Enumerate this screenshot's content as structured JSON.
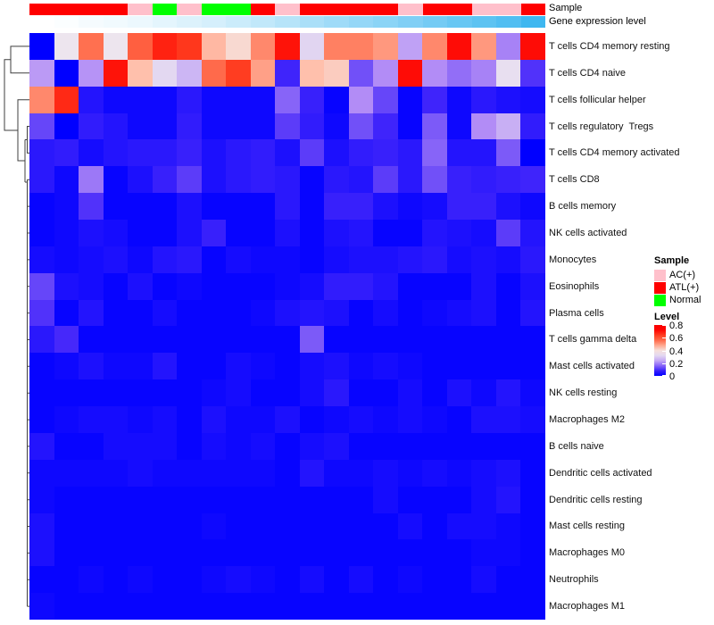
{
  "annotations": {
    "sample_label": "Sample",
    "gene_label": "Gene expression level",
    "sample_colors": {
      "AC(+)": "#FFC0CB",
      "ATL(+)": "#FF0000",
      "Normal": "#00FF00"
    },
    "sample_values": [
      "ATL(+)",
      "ATL(+)",
      "ATL(+)",
      "ATL(+)",
      "AC(+)",
      "Normal",
      "AC(+)",
      "Normal",
      "Normal",
      "ATL(+)",
      "AC(+)",
      "ATL(+)",
      "ATL(+)",
      "ATL(+)",
      "ATL(+)",
      "AC(+)",
      "ATL(+)",
      "ATL(+)",
      "AC(+)",
      "AC(+)",
      "ATL(+)"
    ],
    "gene_expression_values": [
      0.0,
      0.02,
      0.05,
      0.07,
      0.1,
      0.14,
      0.18,
      0.22,
      0.27,
      0.32,
      0.38,
      0.44,
      0.5,
      0.55,
      0.6,
      0.66,
      0.72,
      0.78,
      0.84,
      0.9,
      1.0
    ],
    "gene_gradient_low": "#FFFFFF",
    "gene_gradient_high": "#3EB7F0"
  },
  "legend": {
    "sample_title": "Sample",
    "sample_items": [
      {
        "label": "AC(+)",
        "color": "#FFC0CB"
      },
      {
        "label": "ATL(+)",
        "color": "#FF0000"
      },
      {
        "label": "Normal",
        "color": "#00FF00"
      }
    ],
    "level_title": "Level",
    "level_ticks": [
      "0.8",
      "0.6",
      "0.4",
      "0.2",
      "0"
    ]
  },
  "chart_data": {
    "type": "heatmap",
    "title": "",
    "columns_count": 21,
    "value_range": [
      0,
      0.8
    ],
    "colormap": {
      "low": "#0000FF",
      "mid": "#FFFFFF",
      "high": "#FF0000",
      "mid_value": 0.38
    },
    "column_annotations": {
      "Sample": [
        "ATL(+)",
        "ATL(+)",
        "ATL(+)",
        "ATL(+)",
        "AC(+)",
        "Normal",
        "AC(+)",
        "Normal",
        "Normal",
        "ATL(+)",
        "AC(+)",
        "ATL(+)",
        "ATL(+)",
        "ATL(+)",
        "ATL(+)",
        "AC(+)",
        "ATL(+)",
        "ATL(+)",
        "AC(+)",
        "AC(+)",
        "ATL(+)"
      ],
      "Gene expression level": [
        0.0,
        0.02,
        0.05,
        0.07,
        0.1,
        0.14,
        0.18,
        0.22,
        0.27,
        0.32,
        0.38,
        0.44,
        0.5,
        0.55,
        0.6,
        0.66,
        0.72,
        0.78,
        0.84,
        0.9,
        1.0
      ]
    },
    "rows": [
      "T cells CD4 memory resting",
      "T cells CD4 naive",
      "T cells follicular helper",
      "T cells regulatory  Tregs",
      "T cells CD4 memory activated",
      "T cells CD8",
      "B cells memory",
      "NK cells activated",
      "Monocytes",
      "Eosinophils",
      "Plasma cells",
      "T cells gamma delta",
      "Mast cells activated",
      "NK cells resting",
      "Macrophages M2",
      "B cells naive",
      "Dendritic cells activated",
      "Dendritic cells resting",
      "Mast cells resting",
      "Macrophages M0",
      "Neutrophils",
      "Macrophages M1"
    ],
    "values": [
      [
        0.0,
        0.36,
        0.55,
        0.36,
        0.58,
        0.68,
        0.65,
        0.46,
        0.41,
        0.52,
        0.7,
        0.31,
        0.53,
        0.53,
        0.5,
        0.23,
        0.52,
        0.71,
        0.5,
        0.19,
        0.71
      ],
      [
        0.22,
        0.0,
        0.21,
        0.7,
        0.45,
        0.32,
        0.26,
        0.56,
        0.64,
        0.49,
        0.09,
        0.45,
        0.43,
        0.14,
        0.2,
        0.71,
        0.2,
        0.17,
        0.19,
        0.34,
        0.11
      ],
      [
        0.52,
        0.67,
        0.05,
        0.02,
        0.02,
        0.02,
        0.06,
        0.02,
        0.02,
        0.02,
        0.16,
        0.08,
        0.01,
        0.2,
        0.13,
        0.01,
        0.09,
        0.02,
        0.06,
        0.04,
        0.03
      ],
      [
        0.13,
        0.0,
        0.07,
        0.05,
        0.02,
        0.02,
        0.07,
        0.02,
        0.02,
        0.02,
        0.12,
        0.07,
        0.02,
        0.14,
        0.09,
        0.01,
        0.15,
        0.02,
        0.2,
        0.25,
        0.07
      ],
      [
        0.06,
        0.07,
        0.03,
        0.05,
        0.06,
        0.06,
        0.08,
        0.04,
        0.06,
        0.07,
        0.04,
        0.12,
        0.04,
        0.07,
        0.08,
        0.06,
        0.16,
        0.05,
        0.05,
        0.15,
        0.0
      ],
      [
        0.06,
        0.02,
        0.18,
        0.01,
        0.04,
        0.08,
        0.12,
        0.04,
        0.06,
        0.07,
        0.06,
        0.01,
        0.06,
        0.05,
        0.12,
        0.06,
        0.14,
        0.08,
        0.07,
        0.08,
        0.09
      ],
      [
        0.01,
        0.02,
        0.11,
        0.01,
        0.01,
        0.01,
        0.04,
        0.01,
        0.01,
        0.01,
        0.06,
        0.01,
        0.08,
        0.08,
        0.04,
        0.02,
        0.03,
        0.08,
        0.08,
        0.04,
        0.02
      ],
      [
        0.01,
        0.02,
        0.04,
        0.03,
        0.01,
        0.01,
        0.04,
        0.08,
        0.01,
        0.01,
        0.04,
        0.01,
        0.04,
        0.05,
        0.01,
        0.01,
        0.05,
        0.04,
        0.03,
        0.12,
        0.05
      ],
      [
        0.03,
        0.02,
        0.03,
        0.04,
        0.02,
        0.05,
        0.06,
        0.01,
        0.03,
        0.02,
        0.02,
        0.01,
        0.03,
        0.04,
        0.04,
        0.05,
        0.06,
        0.03,
        0.04,
        0.03,
        0.06
      ],
      [
        0.13,
        0.04,
        0.03,
        0.01,
        0.04,
        0.01,
        0.02,
        0.01,
        0.01,
        0.01,
        0.02,
        0.03,
        0.07,
        0.07,
        0.05,
        0.01,
        0.01,
        0.01,
        0.04,
        0.01,
        0.04
      ],
      [
        0.11,
        0.01,
        0.05,
        0.01,
        0.01,
        0.03,
        0.01,
        0.01,
        0.01,
        0.02,
        0.04,
        0.05,
        0.04,
        0.01,
        0.03,
        0.01,
        0.02,
        0.03,
        0.04,
        0.01,
        0.05
      ],
      [
        0.06,
        0.1,
        0.01,
        0.01,
        0.01,
        0.01,
        0.01,
        0.01,
        0.01,
        0.01,
        0.01,
        0.15,
        0.01,
        0.01,
        0.01,
        0.01,
        0.01,
        0.01,
        0.01,
        0.01,
        0.01
      ],
      [
        0.01,
        0.02,
        0.04,
        0.02,
        0.02,
        0.05,
        0.01,
        0.01,
        0.03,
        0.02,
        0.01,
        0.03,
        0.04,
        0.02,
        0.03,
        0.02,
        0.01,
        0.01,
        0.01,
        0.01,
        0.01
      ],
      [
        0.01,
        0.01,
        0.01,
        0.01,
        0.01,
        0.01,
        0.01,
        0.02,
        0.03,
        0.01,
        0.01,
        0.03,
        0.06,
        0.01,
        0.01,
        0.03,
        0.01,
        0.04,
        0.02,
        0.05,
        0.02
      ],
      [
        0.01,
        0.02,
        0.03,
        0.03,
        0.02,
        0.03,
        0.01,
        0.04,
        0.02,
        0.02,
        0.04,
        0.01,
        0.02,
        0.03,
        0.02,
        0.03,
        0.02,
        0.01,
        0.04,
        0.04,
        0.03
      ],
      [
        0.05,
        0.01,
        0.01,
        0.03,
        0.03,
        0.03,
        0.01,
        0.03,
        0.02,
        0.03,
        0.01,
        0.03,
        0.04,
        0.01,
        0.01,
        0.01,
        0.01,
        0.01,
        0.01,
        0.01,
        0.01
      ],
      [
        0.02,
        0.02,
        0.02,
        0.02,
        0.03,
        0.02,
        0.02,
        0.02,
        0.02,
        0.02,
        0.01,
        0.05,
        0.02,
        0.02,
        0.03,
        0.02,
        0.03,
        0.02,
        0.03,
        0.04,
        0.01
      ],
      [
        0.02,
        0.01,
        0.01,
        0.01,
        0.01,
        0.01,
        0.01,
        0.01,
        0.01,
        0.01,
        0.01,
        0.01,
        0.01,
        0.01,
        0.03,
        0.01,
        0.01,
        0.01,
        0.03,
        0.05,
        0.01
      ],
      [
        0.04,
        0.01,
        0.01,
        0.01,
        0.01,
        0.01,
        0.01,
        0.02,
        0.01,
        0.01,
        0.01,
        0.01,
        0.01,
        0.01,
        0.01,
        0.03,
        0.01,
        0.03,
        0.03,
        0.02,
        0.01
      ],
      [
        0.04,
        0.01,
        0.01,
        0.01,
        0.01,
        0.01,
        0.01,
        0.01,
        0.01,
        0.01,
        0.01,
        0.01,
        0.01,
        0.01,
        0.01,
        0.01,
        0.01,
        0.01,
        0.02,
        0.02,
        0.01
      ],
      [
        0.01,
        0.01,
        0.02,
        0.01,
        0.02,
        0.01,
        0.01,
        0.02,
        0.03,
        0.02,
        0.01,
        0.03,
        0.01,
        0.03,
        0.01,
        0.02,
        0.01,
        0.01,
        0.03,
        0.01,
        0.01
      ],
      [
        0.02,
        0.01,
        0.01,
        0.01,
        0.01,
        0.01,
        0.01,
        0.01,
        0.01,
        0.01,
        0.01,
        0.01,
        0.01,
        0.01,
        0.01,
        0.01,
        0.01,
        0.01,
        0.01,
        0.01,
        0.01
      ]
    ]
  }
}
